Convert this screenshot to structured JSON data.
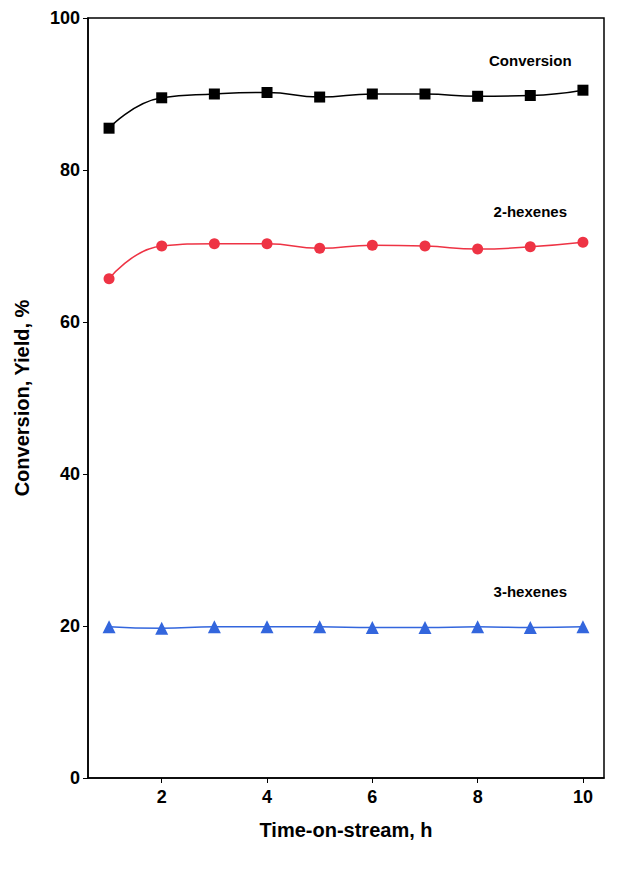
{
  "chart_data": {
    "type": "line",
    "x_label": "Time-on-stream, h",
    "y_label": "Conversion, Yield, %",
    "x": [
      1,
      2,
      3,
      4,
      5,
      6,
      7,
      8,
      9,
      10
    ],
    "series": [
      {
        "name": "Conversion",
        "color": "#000000",
        "marker": "square",
        "values": [
          85.5,
          89.5,
          90.0,
          90.2,
          89.6,
          90.0,
          90.0,
          89.7,
          89.8,
          90.5
        ]
      },
      {
        "name": "2-hexenes",
        "color": "#ee3344",
        "marker": "circle",
        "values": [
          65.7,
          70.0,
          70.3,
          70.3,
          69.7,
          70.1,
          70.0,
          69.6,
          69.9,
          70.5
        ]
      },
      {
        "name": "3-hexenes",
        "color": "#3366dd",
        "marker": "triangle",
        "values": [
          19.9,
          19.7,
          19.9,
          19.9,
          19.9,
          19.8,
          19.8,
          19.9,
          19.8,
          19.9
        ]
      }
    ],
    "xlim": [
      0.6,
      10.4
    ],
    "xticks": [
      2,
      4,
      6,
      8,
      10
    ],
    "ylim": [
      0,
      100
    ],
    "yticks": [
      0,
      20,
      40,
      60,
      80,
      100
    ],
    "grid": false
  }
}
